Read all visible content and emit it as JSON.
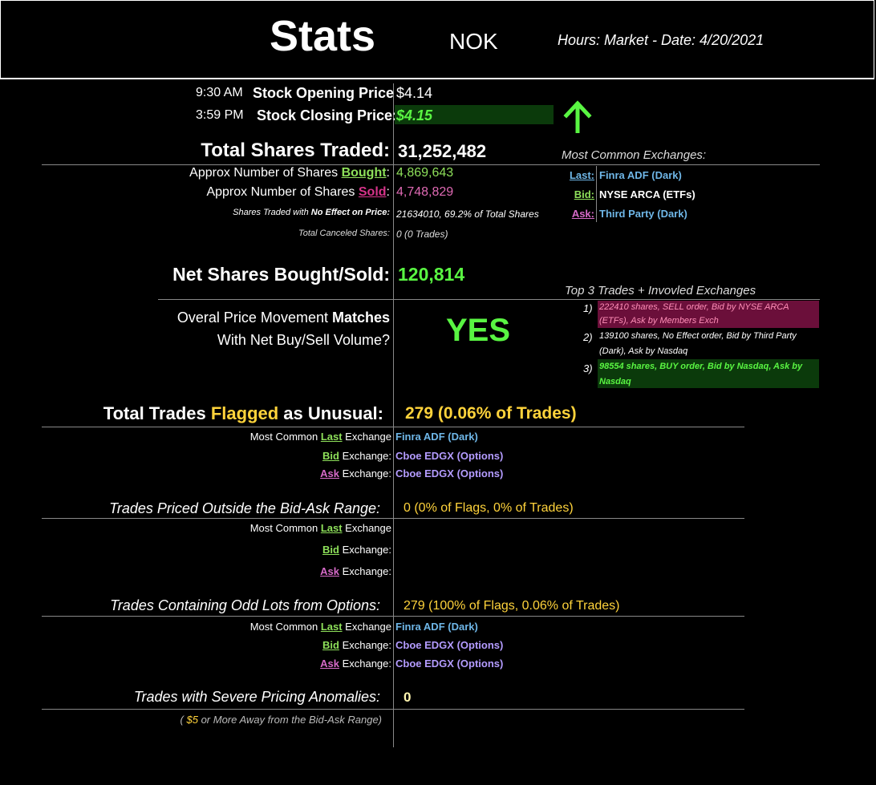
{
  "header": {
    "title": "Stats",
    "ticker": "NOK",
    "hours_date": "Hours: Market - Date: 4/20/2021"
  },
  "prices": {
    "open_time": "9:30 AM",
    "open_label": "Stock Opening Price",
    "open_value": "$4.14",
    "close_time": "3:59 PM",
    "close_label": "Stock Closing Price:",
    "close_value": "$4.15",
    "direction_icon": "up-arrow-icon",
    "direction_color": "#59f542"
  },
  "volume": {
    "total_label": "Total Shares Traded:",
    "total_value": "31,252,482",
    "bought_prefix": "Approx Number of Shares ",
    "bought_word": "Bought",
    "bought_value": "4,869,643",
    "sold_prefix": "Approx Number of Shares ",
    "sold_word": "Sold",
    "sold_value": "4,748,829",
    "noeffect_label_1": "Shares Traded with ",
    "noeffect_label_2": "No Effect on Price:",
    "noeffect_value": "21634010, 69.2% of Total Shares",
    "canceled_label": "Total Canceled Shares:",
    "canceled_value": "0 (0 Trades)",
    "net_label": "Net Shares Bought/Sold:",
    "net_value": "120,814"
  },
  "common_exchanges": {
    "title": "Most Common Exchanges:",
    "rows": [
      {
        "label": "Last:",
        "value": "Finra ADF (Dark)"
      },
      {
        "label": "Bid:",
        "value": "NYSE ARCA (ETFs)"
      },
      {
        "label": "Ask:",
        "value": "Third Party (Dark)"
      }
    ]
  },
  "top_trades": {
    "title": "Top 3 Trades + Invovled Exchanges",
    "items": [
      {
        "num": "1)",
        "text": "222410 shares, SELL order, Bid by NYSE ARCA (ETFs), Ask by Members Exch",
        "bg": "#6b0f3a",
        "color": "#ff8fb8"
      },
      {
        "num": "2)",
        "text": "139100 shares, No Effect order, Bid by Third Party (Dark), Ask by Nasdaq",
        "bg": "#000000",
        "color": "#ffffff"
      },
      {
        "num": "3)",
        "text": "98554 shares, BUY order, Bid by Nasdaq, Ask by Nasdaq",
        "bg": "#0b3a0b",
        "color": "#59f542"
      }
    ]
  },
  "movement": {
    "line1_a": "Overal Price Movement ",
    "line1_b": "Matches",
    "line2": "With Net Buy/Sell Volume?",
    "answer": "YES"
  },
  "flagged": {
    "label_a": "Total Trades ",
    "label_b": "Flagged",
    "label_c": " as Unusual:",
    "value": "279 (0.06% of Trades)",
    "last_prefix": "Most Common ",
    "last_word": "Last",
    "suffix": " Exchange",
    "bid_word": "Bid",
    "ask_word": "Ask",
    "colon_suffix": " Exchange:",
    "last_value": "Finra ADF (Dark)",
    "bid_value": "Cboe EDGX (Options)",
    "ask_value": "Cboe EDGX (Options)"
  },
  "outside_range": {
    "label": "Trades Priced Outside the Bid-Ask Range:",
    "value": "0 (0% of Flags, 0% of Trades)"
  },
  "odd_lots": {
    "label": "Trades Containing Odd Lots from Options:",
    "value": "279 (100% of Flags, 0.06% of Trades)",
    "last_value": "Finra ADF (Dark)",
    "bid_value": "Cboe EDGX (Options)",
    "ask_value": "Cboe EDGX (Options)"
  },
  "severe": {
    "label": "Trades with Severe Pricing Anomalies:",
    "value": "0",
    "note_a": "( ",
    "note_amt": "$5",
    "note_b": "  or More Away from the Bid-Ask Range)"
  }
}
